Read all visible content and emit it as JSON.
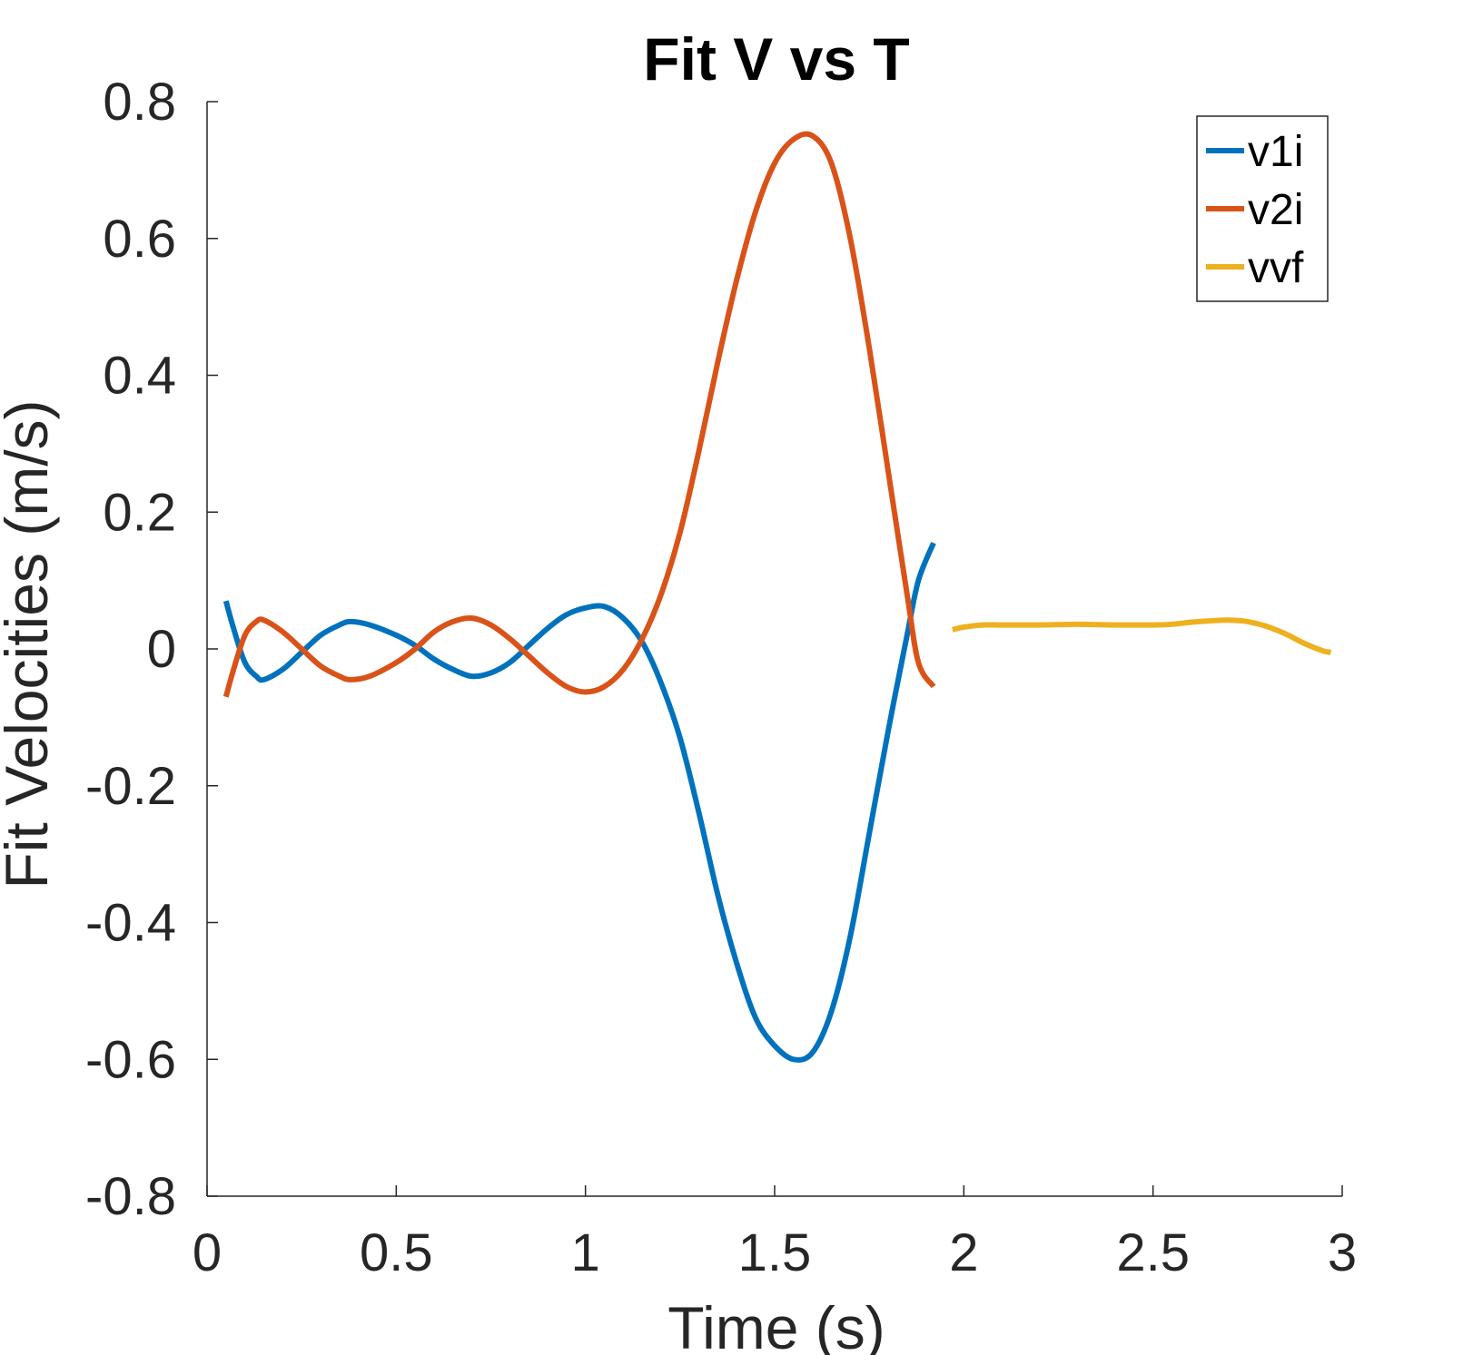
{
  "chart_data": {
    "type": "line",
    "title": "Fit V vs T",
    "xlabel": "Time (s)",
    "ylabel": "Fit Velocities (m/s)",
    "xlim": [
      0,
      3
    ],
    "ylim": [
      -0.8,
      0.8
    ],
    "xticks": [
      0,
      0.5,
      1,
      1.5,
      2,
      2.5,
      3
    ],
    "xtick_labels": [
      "0",
      "0.5",
      "1",
      "1.5",
      "2",
      "2.5",
      "3"
    ],
    "yticks": [
      -0.8,
      -0.6,
      -0.4,
      -0.2,
      0,
      0.2,
      0.4,
      0.6,
      0.8
    ],
    "ytick_labels": [
      "-0.8",
      "-0.6",
      "-0.4",
      "-0.2",
      "0",
      "0.2",
      "0.4",
      "0.6",
      "0.8"
    ],
    "grid": false,
    "legend_position": "top-right",
    "series": [
      {
        "name": "v1i",
        "color": "#0072BD",
        "points": [
          [
            0.05,
            0.07
          ],
          [
            0.07,
            0.03
          ],
          [
            0.1,
            -0.02
          ],
          [
            0.13,
            -0.04
          ],
          [
            0.15,
            -0.045
          ],
          [
            0.2,
            -0.03
          ],
          [
            0.25,
            -0.005
          ],
          [
            0.3,
            0.02
          ],
          [
            0.35,
            0.035
          ],
          [
            0.38,
            0.04
          ],
          [
            0.43,
            0.035
          ],
          [
            0.5,
            0.02
          ],
          [
            0.55,
            0.005
          ],
          [
            0.6,
            -0.015
          ],
          [
            0.65,
            -0.03
          ],
          [
            0.7,
            -0.04
          ],
          [
            0.75,
            -0.035
          ],
          [
            0.8,
            -0.02
          ],
          [
            0.85,
            0.005
          ],
          [
            0.9,
            0.03
          ],
          [
            0.95,
            0.05
          ],
          [
            1.0,
            0.06
          ],
          [
            1.05,
            0.062
          ],
          [
            1.1,
            0.045
          ],
          [
            1.15,
            0.01
          ],
          [
            1.2,
            -0.05
          ],
          [
            1.25,
            -0.13
          ],
          [
            1.3,
            -0.24
          ],
          [
            1.35,
            -0.36
          ],
          [
            1.4,
            -0.46
          ],
          [
            1.45,
            -0.54
          ],
          [
            1.5,
            -0.58
          ],
          [
            1.55,
            -0.6
          ],
          [
            1.6,
            -0.59
          ],
          [
            1.65,
            -0.53
          ],
          [
            1.7,
            -0.42
          ],
          [
            1.75,
            -0.27
          ],
          [
            1.8,
            -0.12
          ],
          [
            1.85,
            0.02
          ],
          [
            1.88,
            0.1
          ],
          [
            1.92,
            0.155
          ]
        ]
      },
      {
        "name": "v2i",
        "color": "#D95319",
        "points": [
          [
            0.05,
            -0.07
          ],
          [
            0.07,
            -0.03
          ],
          [
            0.1,
            0.02
          ],
          [
            0.13,
            0.04
          ],
          [
            0.15,
            0.042
          ],
          [
            0.2,
            0.025
          ],
          [
            0.25,
            0.0
          ],
          [
            0.3,
            -0.025
          ],
          [
            0.35,
            -0.04
          ],
          [
            0.38,
            -0.045
          ],
          [
            0.43,
            -0.04
          ],
          [
            0.5,
            -0.02
          ],
          [
            0.55,
            0.0
          ],
          [
            0.6,
            0.025
          ],
          [
            0.65,
            0.04
          ],
          [
            0.7,
            0.045
          ],
          [
            0.75,
            0.035
          ],
          [
            0.8,
            0.015
          ],
          [
            0.85,
            -0.01
          ],
          [
            0.9,
            -0.035
          ],
          [
            0.95,
            -0.055
          ],
          [
            1.0,
            -0.063
          ],
          [
            1.05,
            -0.055
          ],
          [
            1.1,
            -0.03
          ],
          [
            1.15,
            0.015
          ],
          [
            1.2,
            0.08
          ],
          [
            1.25,
            0.17
          ],
          [
            1.3,
            0.29
          ],
          [
            1.35,
            0.42
          ],
          [
            1.4,
            0.54
          ],
          [
            1.45,
            0.64
          ],
          [
            1.5,
            0.71
          ],
          [
            1.55,
            0.745
          ],
          [
            1.6,
            0.75
          ],
          [
            1.65,
            0.71
          ],
          [
            1.7,
            0.6
          ],
          [
            1.75,
            0.44
          ],
          [
            1.8,
            0.26
          ],
          [
            1.85,
            0.08
          ],
          [
            1.88,
            -0.02
          ],
          [
            1.92,
            -0.055
          ]
        ]
      },
      {
        "name": "vvf",
        "color": "#EDB120",
        "points": [
          [
            1.97,
            0.028
          ],
          [
            2.0,
            0.032
          ],
          [
            2.05,
            0.035
          ],
          [
            2.1,
            0.035
          ],
          [
            2.2,
            0.035
          ],
          [
            2.3,
            0.036
          ],
          [
            2.4,
            0.035
          ],
          [
            2.5,
            0.035
          ],
          [
            2.55,
            0.036
          ],
          [
            2.6,
            0.039
          ],
          [
            2.65,
            0.041
          ],
          [
            2.7,
            0.042
          ],
          [
            2.75,
            0.04
          ],
          [
            2.8,
            0.033
          ],
          [
            2.85,
            0.022
          ],
          [
            2.9,
            0.008
          ],
          [
            2.95,
            -0.003
          ],
          [
            2.97,
            -0.005
          ]
        ]
      }
    ]
  }
}
